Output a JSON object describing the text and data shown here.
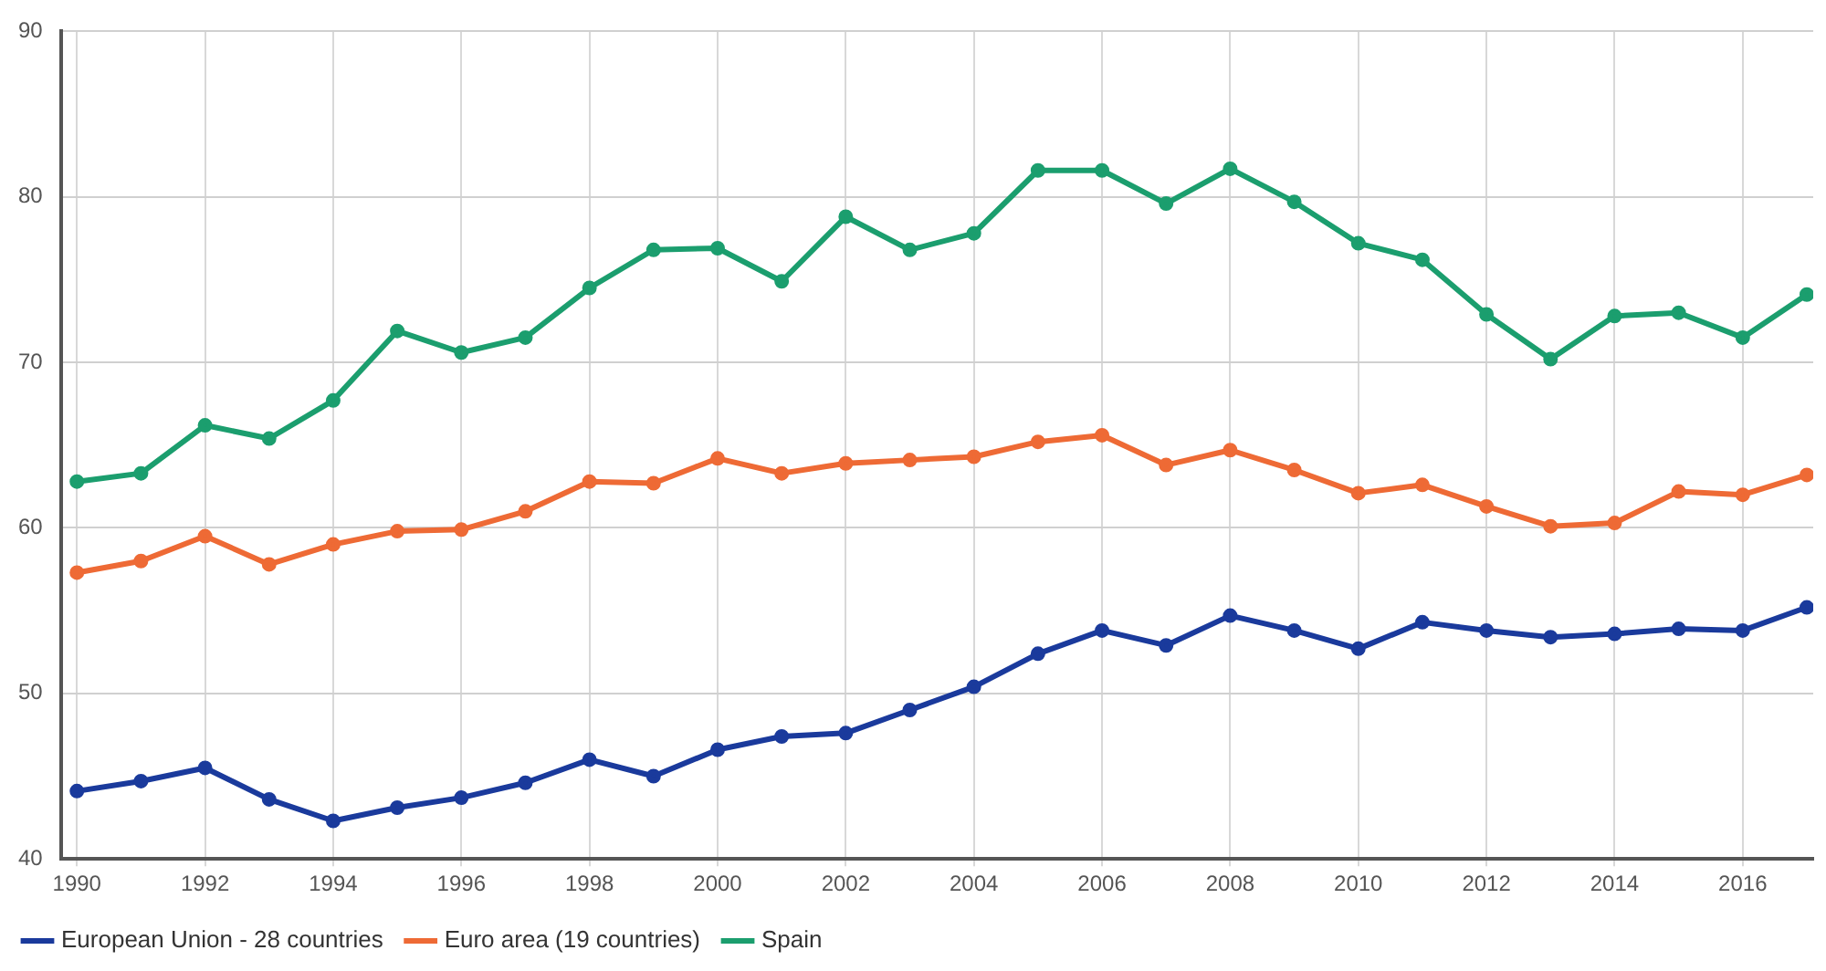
{
  "chart_data": {
    "type": "line",
    "x": [
      1990,
      1991,
      1992,
      1993,
      1994,
      1995,
      1996,
      1997,
      1998,
      1999,
      2000,
      2001,
      2002,
      2003,
      2004,
      2005,
      2006,
      2007,
      2008,
      2009,
      2010,
      2011,
      2012,
      2013,
      2014,
      2015,
      2016,
      2017
    ],
    "series": [
      {
        "name": "European Union - 28 countries",
        "color": "#1a3a9c",
        "values": [
          44.1,
          44.7,
          45.5,
          43.6,
          42.3,
          43.1,
          43.7,
          44.6,
          46.0,
          45.0,
          46.6,
          47.4,
          47.6,
          49.0,
          50.4,
          52.4,
          53.8,
          52.9,
          54.7,
          53.8,
          52.7,
          54.3,
          53.8,
          53.4,
          53.6,
          53.9,
          53.8,
          55.2
        ]
      },
      {
        "name": "Euro area (19 countries)",
        "color": "#ee6a35",
        "values": [
          57.3,
          58.0,
          59.5,
          57.8,
          59.0,
          59.8,
          59.9,
          61.0,
          62.8,
          62.7,
          64.2,
          63.3,
          63.9,
          64.1,
          64.3,
          65.2,
          65.6,
          63.8,
          64.7,
          63.5,
          62.1,
          62.6,
          61.3,
          60.1,
          60.3,
          62.2,
          62.0,
          63.2
        ]
      },
      {
        "name": "Spain",
        "color": "#1b9e6e",
        "values": [
          62.8,
          63.3,
          66.2,
          65.4,
          67.7,
          71.9,
          70.6,
          71.5,
          74.5,
          76.8,
          76.9,
          74.9,
          78.8,
          76.8,
          77.8,
          81.6,
          81.6,
          79.6,
          81.7,
          79.7,
          77.2,
          76.2,
          72.9,
          70.2,
          72.8,
          73.0,
          71.5,
          74.1
        ]
      }
    ],
    "xlim": [
      1989.75,
      2017.1
    ],
    "xticks": [
      1990,
      1992,
      1994,
      1996,
      1998,
      2000,
      2002,
      2004,
      2006,
      2008,
      2010,
      2012,
      2014,
      2016
    ],
    "ylim": [
      40,
      90
    ],
    "yticks": [
      40,
      50,
      60,
      70,
      80,
      90
    ],
    "grid": true,
    "legend": "bottom",
    "marker": "circle",
    "line_style": "solid"
  }
}
